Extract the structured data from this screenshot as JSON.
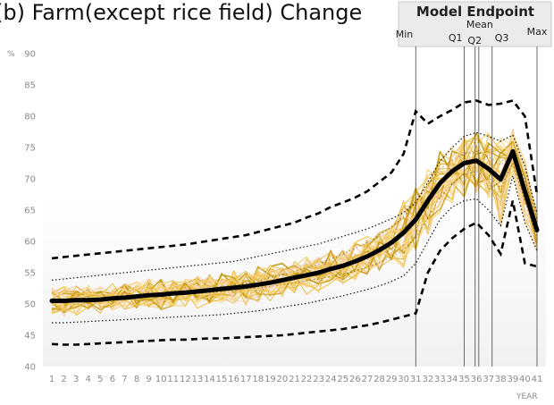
{
  "chart_data": {
    "type": "line",
    "title": "(b) Farm(except rice field) Change",
    "ylabel": "%",
    "xlabel": "YEAR",
    "ylim": [
      40,
      90
    ],
    "yticks": [
      40,
      45,
      50,
      55,
      60,
      65,
      70,
      75,
      80,
      85,
      90
    ],
    "x": [
      1,
      2,
      3,
      4,
      5,
      6,
      7,
      8,
      9,
      10,
      11,
      12,
      13,
      14,
      15,
      16,
      17,
      18,
      19,
      20,
      21,
      22,
      23,
      24,
      25,
      26,
      27,
      28,
      29,
      30,
      31,
      32,
      33,
      34,
      35,
      36,
      37,
      38,
      39,
      40,
      41
    ],
    "grid": false,
    "legend": "none",
    "band_colors": [
      "#c59a14",
      "#e0b030",
      "#f0c040",
      "#f6d27a",
      "#f8dfa0",
      "#f5c6a8"
    ],
    "series": [
      {
        "values": [
          50.5,
          50.5,
          50.6,
          50.6,
          50.7,
          50.9,
          51.0,
          51.2,
          51.4,
          51.5,
          51.7,
          51.8,
          52.0,
          52.2,
          52.4,
          52.6,
          52.8,
          53.1,
          53.4,
          53.8,
          54.2,
          54.6,
          55.0,
          55.6,
          56.1,
          56.8,
          57.6,
          58.6,
          59.8,
          61.4,
          63.5,
          66.5,
          69.3,
          71.2,
          72.5,
          72.9,
          71.6,
          69.9,
          74.4,
          68.0,
          61.8
        ]
      },
      {
        "values": [
          53.8,
          54.0,
          54.2,
          54.4,
          54.6,
          54.8,
          55.0,
          55.2,
          55.4,
          55.6,
          55.8,
          56.0,
          56.2,
          56.4,
          56.6,
          56.8,
          57.2,
          57.6,
          58.0,
          58.4,
          58.8,
          59.2,
          59.6,
          60.2,
          60.8,
          61.4,
          62.0,
          62.8,
          63.6,
          64.6,
          66.2,
          69.5,
          72.8,
          75.0,
          76.8,
          77.4,
          76.8,
          76.0,
          77.0,
          72.0,
          64.5
        ]
      },
      {
        "values": [
          47.0,
          47.0,
          47.1,
          47.2,
          47.3,
          47.4,
          47.5,
          47.6,
          47.7,
          47.8,
          47.9,
          48.0,
          48.1,
          48.2,
          48.3,
          48.5,
          48.7,
          48.9,
          49.2,
          49.5,
          49.8,
          50.1,
          50.5,
          50.9,
          51.3,
          51.8,
          52.3,
          52.9,
          53.6,
          54.5,
          56.5,
          60.0,
          63.5,
          65.5,
          66.5,
          66.8,
          65.0,
          62.5,
          70.5,
          63.0,
          58.5
        ]
      },
      {
        "values": [
          57.3,
          57.5,
          57.7,
          57.9,
          58.1,
          58.3,
          58.5,
          58.7,
          58.9,
          59.1,
          59.3,
          59.5,
          59.8,
          60.1,
          60.4,
          60.7,
          61.0,
          61.5,
          62.0,
          62.5,
          63.0,
          63.8,
          64.5,
          65.5,
          66.2,
          67.0,
          68.0,
          69.5,
          71.0,
          74.0,
          80.8,
          78.8,
          80.0,
          81.0,
          82.2,
          82.5,
          81.8,
          82.0,
          82.5,
          80.0,
          67.5
        ]
      },
      {
        "values": [
          43.6,
          43.5,
          43.5,
          43.6,
          43.7,
          43.8,
          43.9,
          44.0,
          44.1,
          44.2,
          44.3,
          44.3,
          44.4,
          44.5,
          44.5,
          44.6,
          44.7,
          44.8,
          44.9,
          45.0,
          45.2,
          45.4,
          45.6,
          45.8,
          46.0,
          46.3,
          46.6,
          47.0,
          47.5,
          48.0,
          48.5,
          55.0,
          58.5,
          60.5,
          62.0,
          63.0,
          61.0,
          58.0,
          66.5,
          56.5,
          56.0
        ]
      },
      {
        "values": [
          50.1,
          50.3,
          50.4,
          50.6,
          50.8,
          51.0,
          51.1,
          51.3,
          51.5,
          51.7,
          51.9,
          52.1,
          52.3,
          52.5,
          52.8,
          53.0,
          53.3,
          53.7,
          54.2,
          54.7,
          55.2,
          55.8,
          56.4,
          57.2,
          58.0,
          58.9,
          59.8,
          61.0,
          62.3,
          64.0,
          66.2,
          69.0,
          71.5,
          73.0,
          74.0,
          74.4,
          73.5,
          72.2,
          74.0,
          70.0,
          63.5
        ]
      },
      {
        "values": [
          50.8,
          50.8,
          50.8,
          50.9,
          50.9,
          51.0,
          51.1,
          51.2,
          51.3,
          51.4,
          51.5,
          51.6,
          51.7,
          51.8,
          52.0,
          52.2,
          52.4,
          52.6,
          52.8,
          53.1,
          53.4,
          53.7,
          54.0,
          54.4,
          54.8,
          55.3,
          55.9,
          56.6,
          57.5,
          58.7,
          60.5,
          63.8,
          67.0,
          69.2,
          70.7,
          71.2,
          70.2,
          68.6,
          72.5,
          66.5,
          60.5
        ]
      }
    ],
    "endpoints": {
      "title": "Model Endpoint",
      "labels": [
        {
          "text": "Min",
          "x": 31
        },
        {
          "text": "Q1",
          "x": 35
        },
        {
          "text": "Q2",
          "x": 35.9
        },
        {
          "text": "Mean",
          "x": 36.2
        },
        {
          "text": "Q3",
          "x": 37.3
        },
        {
          "text": "Max",
          "x": 41
        }
      ]
    }
  }
}
